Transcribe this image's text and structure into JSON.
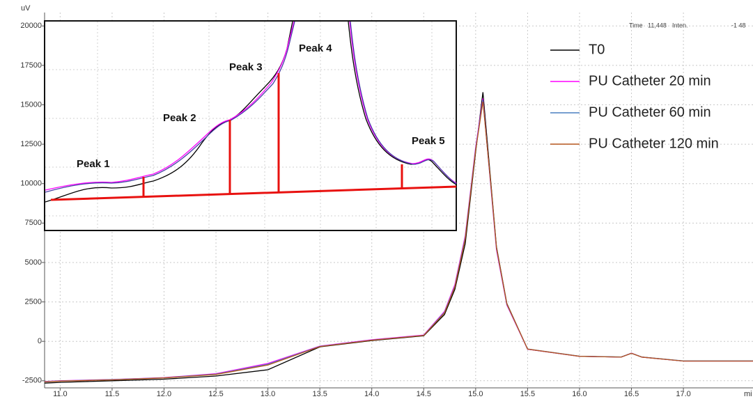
{
  "chart_data": {
    "type": "line",
    "y_label": "uV",
    "x_label": "mi",
    "header": {
      "time_label": "Time",
      "time_value": "11,448",
      "inten_label": "Inten.",
      "inten_value": "-1 48"
    },
    "inset_labels": [
      "Peak 1",
      "Peak 2",
      "Peak 3",
      "Peak 4",
      "Peak 5"
    ],
    "x": [
      10.85,
      11.0,
      11.5,
      12.0,
      12.5,
      13.0,
      13.5,
      14.0,
      14.5,
      14.7,
      14.8,
      14.9,
      15.0,
      15.07,
      15.15,
      15.2,
      15.3,
      15.5,
      16.0,
      16.4,
      16.5,
      16.6,
      17.0,
      17.67
    ],
    "series": [
      {
        "name": "T0",
        "color": "#000000",
        "values": [
          -2650,
          -2600,
          -2500,
          -2400,
          -2200,
          -1800,
          -350,
          50,
          350,
          1700,
          3300,
          6200,
          12000,
          15800,
          9800,
          6000,
          2400,
          -500,
          -950,
          -1000,
          -750,
          -1000,
          -1250,
          -1250
        ]
      },
      {
        "name": "PU Catheter 20 min",
        "color": "#ff00ff",
        "values": [
          -2550,
          -2500,
          -2420,
          -2300,
          -2050,
          -1400,
          -300,
          100,
          400,
          1900,
          3600,
          6700,
          12300,
          15400,
          9500,
          5800,
          2300,
          -500,
          -950,
          -1000,
          -750,
          -1000,
          -1250,
          -1250
        ]
      },
      {
        "name": "PU Catheter 60 min",
        "color": "#4a7fc1",
        "values": [
          -2560,
          -2510,
          -2430,
          -2310,
          -2080,
          -1450,
          -320,
          80,
          380,
          1850,
          3500,
          6600,
          12200,
          15300,
          9600,
          5900,
          2350,
          -480,
          -940,
          -990,
          -760,
          -990,
          -1240,
          -1240
        ]
      },
      {
        "name": "PU Catheter 120 min",
        "color": "#b5561d",
        "values": [
          -2570,
          -2520,
          -2440,
          -2320,
          -2100,
          -1500,
          -330,
          70,
          370,
          1800,
          3450,
          6500,
          12100,
          15200,
          9700,
          5950,
          2380,
          -490,
          -950,
          -1000,
          -760,
          -1000,
          -1250,
          -1250
        ]
      }
    ],
    "xlim": [
      10.85,
      17.67
    ],
    "ylim": [
      -2950,
      20850
    ],
    "xticks": [
      {
        "value": 11,
        "label": "11.0"
      },
      11.5,
      {
        "value": 12,
        "label": "12.0"
      },
      12.5,
      {
        "value": 13,
        "label": "13.0"
      },
      13.5,
      {
        "value": 14,
        "label": "14.0"
      },
      14.5,
      {
        "value": 15,
        "label": "15.0"
      },
      15.5,
      {
        "value": 16,
        "label": "16.0"
      },
      16.5,
      {
        "value": 17,
        "label": "17.0"
      }
    ],
    "yticks": [
      -2500,
      0,
      2500,
      5000,
      7500,
      10000,
      12500,
      15000,
      17500,
      20000
    ],
    "grid": true,
    "legend": "top-right"
  }
}
